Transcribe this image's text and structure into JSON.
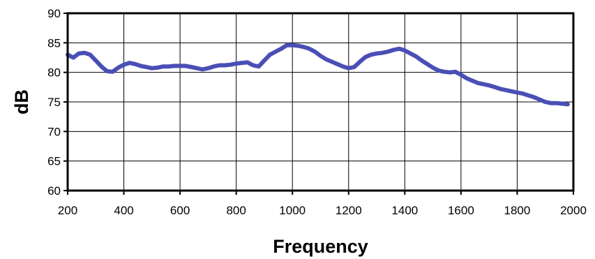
{
  "chart_data": {
    "type": "line",
    "title": "",
    "xlabel": "Frequency",
    "ylabel": "dB",
    "xlim": [
      200,
      2000
    ],
    "ylim": [
      60,
      90
    ],
    "xticks": [
      200,
      400,
      600,
      800,
      1000,
      1200,
      1400,
      1600,
      1800,
      2000
    ],
    "yticks": [
      60,
      65,
      70,
      75,
      80,
      85,
      90
    ],
    "xtick_labels": [
      "200",
      "400",
      "600",
      "800",
      "1000",
      "1200",
      "1400",
      "1600",
      "1800",
      "2000"
    ],
    "ytick_labels": [
      "60",
      "65",
      "70",
      "75",
      "80",
      "85",
      "90"
    ],
    "grid": true,
    "legend": "none",
    "line_color": "#4a4fb5",
    "series": [
      {
        "x": [
          200,
          220,
          240,
          260,
          280,
          300,
          320,
          340,
          360,
          380,
          400,
          420,
          440,
          460,
          480,
          500,
          520,
          540,
          560,
          580,
          600,
          620,
          640,
          660,
          680,
          700,
          720,
          740,
          760,
          780,
          800,
          820,
          840,
          860,
          880,
          900,
          920,
          940,
          960,
          980,
          1000,
          1020,
          1040,
          1060,
          1080,
          1100,
          1120,
          1140,
          1160,
          1180,
          1200,
          1220,
          1240,
          1260,
          1280,
          1300,
          1320,
          1340,
          1360,
          1380,
          1400,
          1420,
          1440,
          1460,
          1480,
          1500,
          1520,
          1540,
          1560,
          1580,
          1600,
          1620,
          1640,
          1660,
          1680,
          1700,
          1720,
          1740,
          1760,
          1780,
          1800,
          1820,
          1840,
          1860,
          1880,
          1900,
          1920,
          1940,
          1960,
          1980
        ],
        "values": [
          83.0,
          82.5,
          83.2,
          83.3,
          83.0,
          82.0,
          81.0,
          80.2,
          80.1,
          80.8,
          81.3,
          81.6,
          81.4,
          81.1,
          80.9,
          80.7,
          80.8,
          81.0,
          81.0,
          81.1,
          81.1,
          81.1,
          80.9,
          80.7,
          80.5,
          80.7,
          81.0,
          81.2,
          81.2,
          81.3,
          81.5,
          81.6,
          81.7,
          81.2,
          81.0,
          82.0,
          83.0,
          83.5,
          84.0,
          84.6,
          84.6,
          84.5,
          84.3,
          84.0,
          83.5,
          82.8,
          82.2,
          81.8,
          81.4,
          81.0,
          80.7,
          80.9,
          81.8,
          82.6,
          83.0,
          83.2,
          83.3,
          83.5,
          83.8,
          84.0,
          83.7,
          83.2,
          82.7,
          82.0,
          81.4,
          80.8,
          80.3,
          80.1,
          80.0,
          80.1,
          79.6,
          79.0,
          78.6,
          78.2,
          78.0,
          77.8,
          77.5,
          77.2,
          77.0,
          76.8,
          76.6,
          76.4,
          76.1,
          75.8,
          75.4,
          75.0,
          74.8,
          74.8,
          74.7,
          74.6
        ]
      }
    ]
  }
}
